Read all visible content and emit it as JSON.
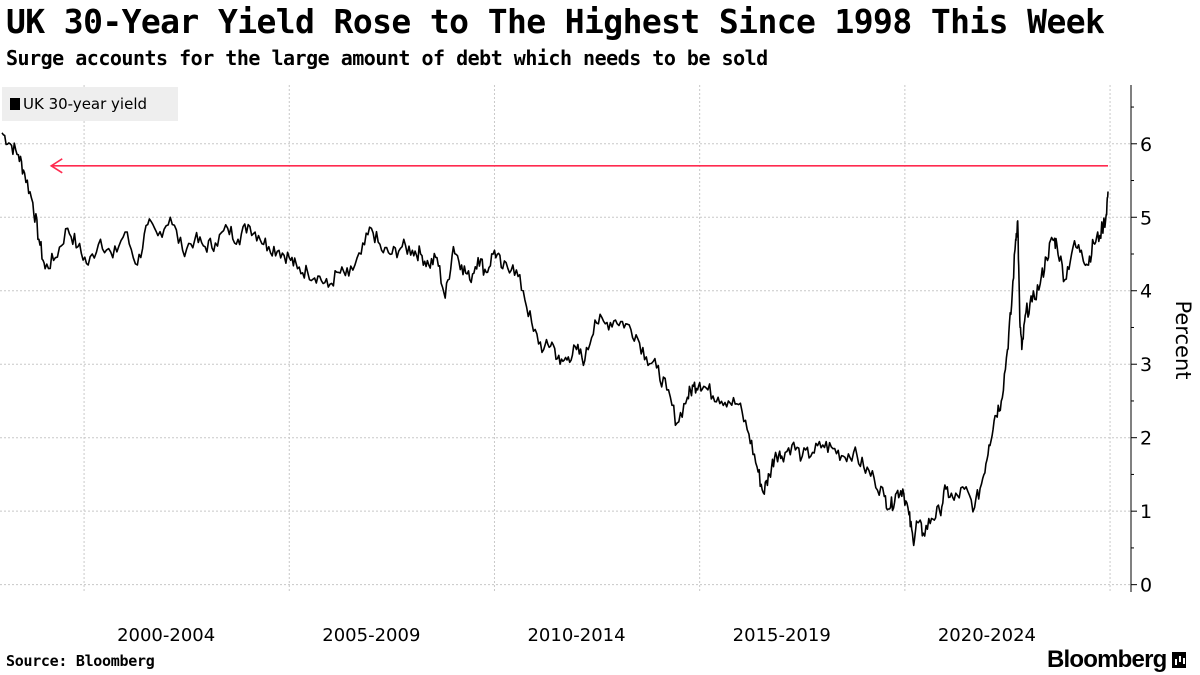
{
  "title": "UK 30-Year Yield Rose to The Highest Since 1998 This Week",
  "subtitle": "Surge accounts for the large amount of debt which needs to be sold",
  "legend": {
    "label": "UK 30-year yield",
    "color": "#000000"
  },
  "source": "Source: Bloomberg",
  "brand": "Bloomberg",
  "chart_data": {
    "type": "line",
    "title": "UK 30-Year Yield Rose to The Highest Since 1998 This Week",
    "subtitle": "Surge accounts for the large amount of debt which needs to be sold",
    "xlabel": "",
    "ylabel": "Percent",
    "xlim": [
      1998.0,
      2024.95
    ],
    "ylim": [
      -0.1,
      6.8
    ],
    "yticks": [
      0,
      1,
      2,
      3,
      4,
      5,
      6
    ],
    "xtick_labels": [
      {
        "label": "2000-2004",
        "center": 2002.0
      },
      {
        "label": "2005-2009",
        "center": 2007.0
      },
      {
        "label": "2010-2014",
        "center": 2012.0
      },
      {
        "label": "2015-2019",
        "center": 2017.0
      },
      {
        "label": "2020-2024",
        "center": 2022.0
      }
    ],
    "gridlines_x": [
      2000,
      2005,
      2010,
      2015,
      2020,
      2025
    ],
    "grid": true,
    "annotation": {
      "type": "arrow",
      "y": 5.7,
      "from_x": 2024.95,
      "to_x": 1999.2,
      "color": "#ff2b4f"
    },
    "series": [
      {
        "name": "UK 30-year yield",
        "color": "#000000",
        "x": [
          1998.0,
          1998.2,
          1998.4,
          1998.55,
          1998.75,
          1998.9,
          1999.05,
          1999.3,
          1999.6,
          1999.85,
          2000.1,
          2000.4,
          2000.7,
          2001.0,
          2001.3,
          2001.55,
          2001.8,
          2002.1,
          2002.4,
          2002.7,
          2002.95,
          2003.2,
          2003.5,
          2003.75,
          2004.0,
          2004.25,
          2004.5,
          2004.75,
          2005.0,
          2005.2,
          2005.45,
          2005.7,
          2005.95,
          2006.2,
          2006.45,
          2006.75,
          2007.0,
          2007.25,
          2007.5,
          2007.75,
          2008.0,
          2008.2,
          2008.4,
          2008.6,
          2008.8,
          2009.0,
          2009.2,
          2009.4,
          2009.6,
          2009.8,
          2010.0,
          2010.2,
          2010.45,
          2010.7,
          2010.95,
          2011.2,
          2011.4,
          2011.6,
          2011.8,
          2012.0,
          2012.2,
          2012.45,
          2012.7,
          2012.95,
          2013.2,
          2013.45,
          2013.7,
          2013.95,
          2014.2,
          2014.45,
          2014.7,
          2014.85,
          2015.0,
          2015.2,
          2015.45,
          2015.7,
          2015.95,
          2016.2,
          2016.4,
          2016.55,
          2016.7,
          2016.85,
          2017.0,
          2017.25,
          2017.5,
          2017.75,
          2018.0,
          2018.25,
          2018.5,
          2018.75,
          2019.0,
          2019.25,
          2019.5,
          2019.65,
          2019.8,
          2019.95,
          2020.1,
          2020.2,
          2020.3,
          2020.45,
          2020.65,
          2020.85,
          2021.0,
          2021.2,
          2021.45,
          2021.7,
          2021.9,
          2022.05,
          2022.2,
          2022.35,
          2022.5,
          2022.6,
          2022.7,
          2022.75,
          2022.8,
          2022.85,
          2022.95,
          2023.1,
          2023.3,
          2023.45,
          2023.6,
          2023.7,
          2023.9,
          2024.1,
          2024.3,
          2024.45,
          2024.6,
          2024.75,
          2024.9,
          2024.95
        ],
        "values": [
          6.15,
          6.0,
          5.85,
          5.6,
          5.2,
          4.7,
          4.3,
          4.45,
          4.85,
          4.6,
          4.35,
          4.7,
          4.45,
          4.8,
          4.35,
          4.9,
          4.75,
          5.0,
          4.55,
          4.7,
          4.6,
          4.65,
          4.85,
          4.7,
          4.9,
          4.75,
          4.6,
          4.55,
          4.45,
          4.3,
          4.25,
          4.2,
          4.05,
          4.25,
          4.2,
          4.5,
          4.85,
          4.55,
          4.5,
          4.6,
          4.55,
          4.5,
          4.35,
          4.45,
          3.9,
          4.6,
          4.35,
          4.15,
          4.45,
          4.25,
          4.55,
          4.3,
          4.35,
          4.0,
          3.45,
          3.2,
          3.3,
          3.0,
          3.1,
          3.2,
          3.05,
          3.6,
          3.55,
          3.6,
          3.55,
          3.4,
          3.1,
          2.95,
          2.65,
          2.2,
          2.55,
          2.7,
          2.75,
          2.65,
          2.55,
          2.5,
          2.45,
          2.05,
          1.6,
          1.25,
          1.5,
          1.8,
          1.75,
          1.9,
          1.75,
          1.8,
          1.9,
          1.85,
          1.75,
          1.8,
          1.6,
          1.45,
          1.2,
          1.05,
          1.25,
          1.3,
          0.95,
          0.6,
          0.85,
          0.7,
          0.9,
          1.0,
          1.3,
          1.15,
          1.3,
          1.05,
          1.45,
          1.9,
          2.3,
          2.5,
          3.2,
          3.8,
          4.7,
          4.95,
          3.6,
          3.2,
          3.7,
          3.85,
          4.1,
          4.45,
          4.7,
          4.65,
          4.15,
          4.6,
          4.55,
          4.35,
          4.65,
          4.75,
          5.0,
          5.35
        ]
      }
    ]
  }
}
